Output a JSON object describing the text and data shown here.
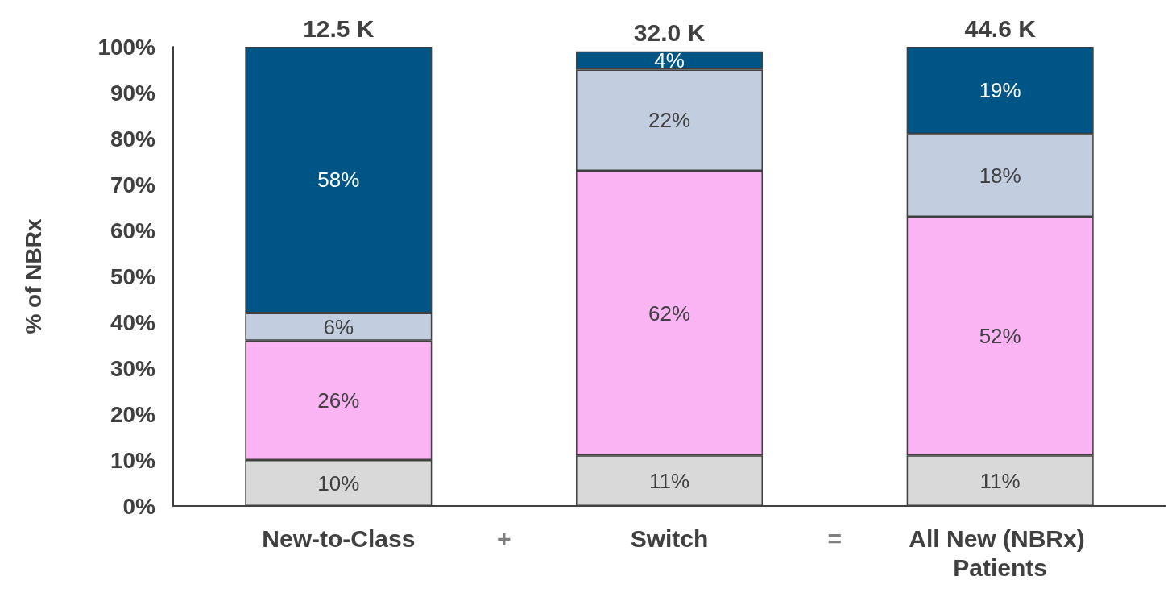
{
  "chart_data": {
    "type": "bar",
    "stacked": true,
    "ylabel": "% of NBRx",
    "categories": [
      "New-to-Class",
      "Switch",
      "All New (NBRx) Patients"
    ],
    "series": [
      {
        "color": "#d9d9d9",
        "values": [
          10,
          11,
          11
        ],
        "value_labels": [
          "10%",
          "11%",
          "11%"
        ]
      },
      {
        "color": "#fab4f3",
        "values": [
          26,
          62,
          52
        ],
        "value_labels": [
          "26%",
          "62%",
          "52%"
        ]
      },
      {
        "color": "#c3cde0",
        "values": [
          6,
          22,
          18
        ],
        "value_labels": [
          "6%",
          "22%",
          "18%"
        ]
      },
      {
        "color": "#005587",
        "values": [
          58,
          4,
          19
        ],
        "value_labels": [
          "58%",
          "4%",
          "19%"
        ]
      }
    ],
    "annotations": [
      {
        "text": "12.5 K",
        "x": "New-to-Class",
        "y": 100
      },
      {
        "text": "32.0 K",
        "x": "Switch",
        "y": 99
      },
      {
        "text": "44.6 K",
        "x": "All New (NBRx) Patients",
        "y": 100
      },
      "+",
      "="
    ],
    "ylim": [
      0,
      100
    ],
    "yticks": [
      {
        "value": 0,
        "label": "0%"
      },
      {
        "value": 10,
        "label": "10%"
      },
      {
        "value": 20,
        "label": "20%"
      },
      {
        "value": 30,
        "label": "30%"
      },
      {
        "value": 40,
        "label": "40%"
      },
      {
        "value": 50,
        "label": "50%"
      },
      {
        "value": 60,
        "label": "60%"
      },
      {
        "value": 70,
        "label": "70%"
      },
      {
        "value": 80,
        "label": "80%"
      },
      {
        "value": 90,
        "label": "90%"
      },
      {
        "value": 100,
        "label": "100%"
      }
    ],
    "grid": false
  }
}
